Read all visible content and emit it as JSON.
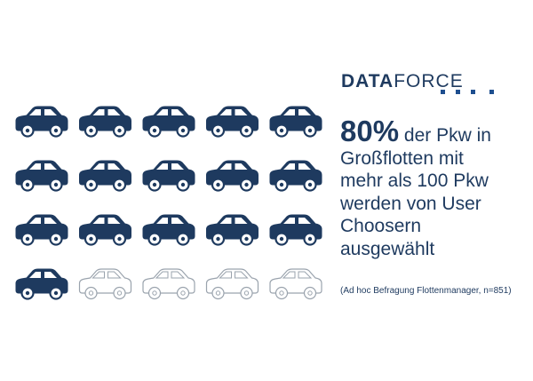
{
  "brand": {
    "strong": "DATA",
    "light": "FORCE"
  },
  "headline": {
    "percent": "80%",
    "lines": [
      "der Pkw in",
      "Großflotten mit",
      "mehr als 100 Pkw",
      "werden von User",
      "Choosern",
      "ausgewählt"
    ]
  },
  "source_note": "(Ad hoc Befragung Flottenmanager, n=851)",
  "colors": {
    "filled": "#1e3a5f",
    "outline": "#9aa3ad",
    "accent": "#1e4f8f"
  },
  "chart_data": {
    "type": "pictogram",
    "total": 20,
    "rows": 4,
    "columns": 5,
    "filled": 16,
    "unfilled": 4,
    "percent_filled": 80,
    "icon": "car-icon"
  }
}
